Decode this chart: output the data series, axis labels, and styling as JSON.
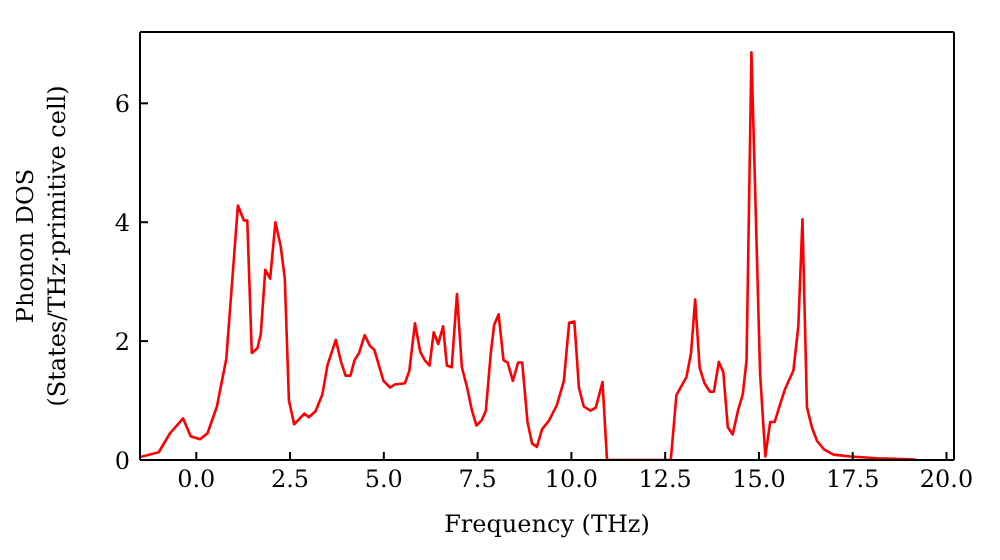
{
  "chart_data": {
    "type": "line",
    "xlabel": "Frequency (THz)",
    "ylabel": "Phonon DOS\n(States/THz·primitive cell)",
    "xlim": [
      -1.5,
      20.2
    ],
    "ylim": [
      0,
      7.2
    ],
    "xticks": [
      {
        "value": 0,
        "label": "0.0"
      },
      {
        "value": 2.5,
        "label": "2.5"
      },
      {
        "value": 5,
        "label": "5.0"
      },
      {
        "value": 7.5,
        "label": "7.5"
      },
      {
        "value": 10,
        "label": "10.0"
      },
      {
        "value": 12.5,
        "label": "12.5"
      },
      {
        "value": 15,
        "label": "15.0"
      },
      {
        "value": 17.5,
        "label": "17.5"
      },
      {
        "value": 20,
        "label": "20.0"
      }
    ],
    "yticks": [
      0,
      2,
      4,
      6
    ],
    "grid": false,
    "marker": "none",
    "line_style": "solid",
    "series": [
      {
        "color": "#ff0000",
        "x": [
          -1.5,
          -1.0,
          -0.7,
          -0.35,
          -0.15,
          0.1,
          0.3,
          0.55,
          0.8,
          1.11,
          1.27,
          1.36,
          1.48,
          1.63,
          1.72,
          1.84,
          1.97,
          2.11,
          2.25,
          2.36,
          2.47,
          2.61,
          2.88,
          3.0,
          3.18,
          3.36,
          3.5,
          3.72,
          3.86,
          3.98,
          4.11,
          4.22,
          4.34,
          4.49,
          4.63,
          4.75,
          4.99,
          5.17,
          5.29,
          5.56,
          5.68,
          5.83,
          5.97,
          6.1,
          6.22,
          6.33,
          6.45,
          6.58,
          6.68,
          6.81,
          6.95,
          7.08,
          7.22,
          7.35,
          7.47,
          7.61,
          7.72,
          7.85,
          7.94,
          8.06,
          8.19,
          8.3,
          8.44,
          8.58,
          8.69,
          8.83,
          8.95,
          9.08,
          9.22,
          9.4,
          9.61,
          9.8,
          9.94,
          10.08,
          10.2,
          10.33,
          10.51,
          10.65,
          10.83,
          10.95,
          12.65,
          12.8,
          13.07,
          13.19,
          13.3,
          13.42,
          13.55,
          13.69,
          13.8,
          13.93,
          14.05,
          14.17,
          14.3,
          14.44,
          14.57,
          14.67,
          14.8,
          15.03,
          15.17,
          15.3,
          15.42,
          15.57,
          15.7,
          15.92,
          16.05,
          16.16,
          16.28,
          16.41,
          16.55,
          16.73,
          16.99,
          17.44,
          18.16,
          19.05,
          19.2
        ],
        "values": [
          0.05,
          0.13,
          0.45,
          0.7,
          0.4,
          0.35,
          0.45,
          0.9,
          1.7,
          4.28,
          4.03,
          4.03,
          1.8,
          1.88,
          2.12,
          3.2,
          3.05,
          4.0,
          3.6,
          3.05,
          1.0,
          0.6,
          0.78,
          0.72,
          0.82,
          1.1,
          1.6,
          2.02,
          1.65,
          1.42,
          1.42,
          1.68,
          1.8,
          2.1,
          1.92,
          1.85,
          1.33,
          1.22,
          1.27,
          1.29,
          1.5,
          2.3,
          1.82,
          1.67,
          1.59,
          2.15,
          1.95,
          2.25,
          1.59,
          1.56,
          2.79,
          1.56,
          1.22,
          0.83,
          0.58,
          0.67,
          0.83,
          1.79,
          2.27,
          2.45,
          1.68,
          1.64,
          1.33,
          1.64,
          1.64,
          0.64,
          0.28,
          0.22,
          0.52,
          0.66,
          0.92,
          1.33,
          2.31,
          2.33,
          1.22,
          0.9,
          0.83,
          0.88,
          1.31,
          0,
          0,
          1.09,
          1.4,
          1.8,
          2.7,
          1.55,
          1.29,
          1.15,
          1.15,
          1.65,
          1.48,
          0.55,
          0.43,
          0.83,
          1.11,
          1.68,
          6.86,
          1.46,
          0.06,
          0.64,
          0.64,
          0.95,
          1.2,
          1.51,
          2.25,
          4.05,
          0.89,
          0.55,
          0.32,
          0.18,
          0.09,
          0.06,
          0.03,
          0.01,
          0
        ]
      }
    ]
  }
}
